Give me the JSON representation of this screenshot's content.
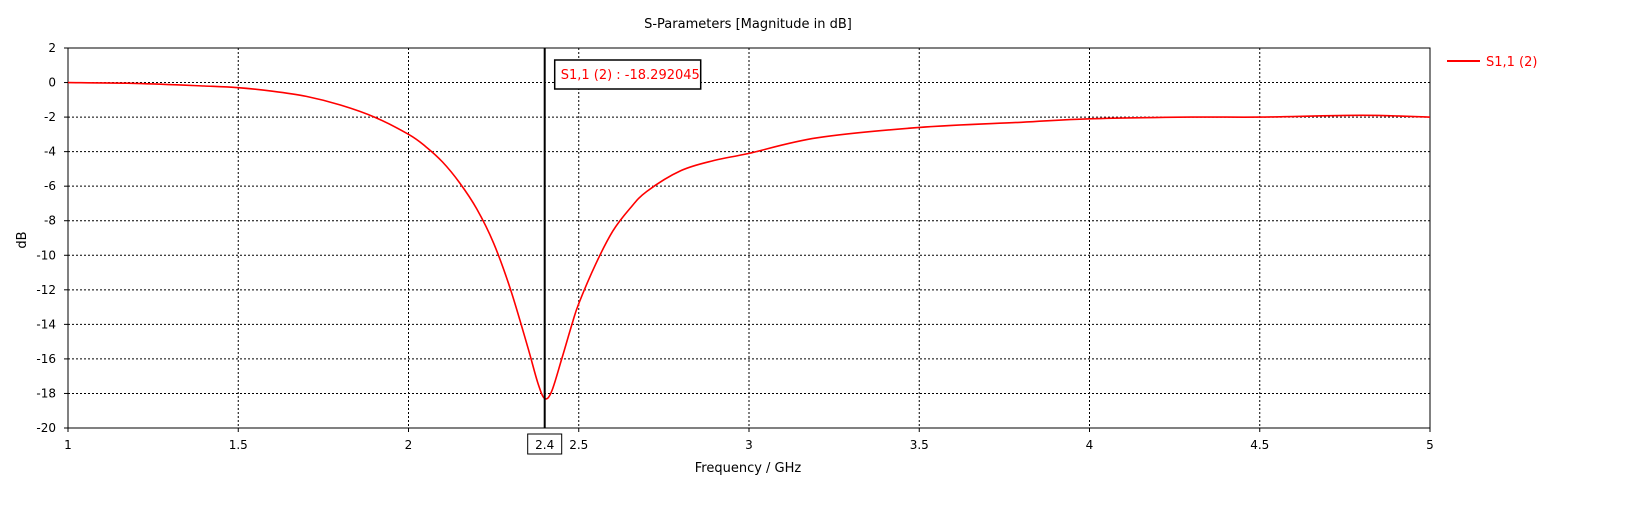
{
  "chart_data": {
    "type": "line",
    "title": "S-Parameters [Magnitude in dB]",
    "xlabel": "Frequency / GHz",
    "ylabel": "dB",
    "xlim": [
      1,
      5
    ],
    "ylim": [
      -20,
      2
    ],
    "xticks": [
      1,
      1.5,
      2,
      2.5,
      3,
      3.5,
      4,
      4.5,
      5
    ],
    "yticks": [
      2,
      0,
      -2,
      -4,
      -6,
      -8,
      -10,
      -12,
      -14,
      -16,
      -18,
      -20
    ],
    "xtick_labels": [
      "1",
      "1.5",
      "2",
      "2.5",
      "3",
      "3.5",
      "4",
      "4.5",
      "5"
    ],
    "ytick_labels": [
      "2",
      "0",
      "-2",
      "-4",
      "-6",
      "-8",
      "-10",
      "-12",
      "-14",
      "-16",
      "-18",
      "-20"
    ],
    "grid": true,
    "legend_position": "top-right outside",
    "series": [
      {
        "name": "S1,1 (2)",
        "color": "#ff0000",
        "x": [
          1.0,
          1.2,
          1.4,
          1.5,
          1.6,
          1.7,
          1.8,
          1.9,
          2.0,
          2.05,
          2.1,
          2.15,
          2.2,
          2.25,
          2.3,
          2.35,
          2.38,
          2.4,
          2.42,
          2.45,
          2.48,
          2.5,
          2.55,
          2.6,
          2.65,
          2.7,
          2.8,
          2.9,
          3.0,
          3.2,
          3.5,
          3.8,
          4.0,
          4.3,
          4.5,
          4.8,
          5.0
        ],
        "y": [
          0.0,
          -0.05,
          -0.2,
          -0.3,
          -0.5,
          -0.8,
          -1.3,
          -2.0,
          -3.0,
          -3.7,
          -4.6,
          -5.8,
          -7.3,
          -9.3,
          -12.0,
          -15.3,
          -17.4,
          -18.29,
          -17.9,
          -16.0,
          -14.0,
          -12.8,
          -10.5,
          -8.6,
          -7.3,
          -6.3,
          -5.1,
          -4.5,
          -4.1,
          -3.2,
          -2.6,
          -2.3,
          -2.1,
          -2.0,
          -2.0,
          -1.9,
          -2.0
        ]
      }
    ],
    "marker": {
      "x": 2.4,
      "x_label": "2.4",
      "label": "S1,1 (2) : -18.292045",
      "value": -18.292045
    }
  }
}
